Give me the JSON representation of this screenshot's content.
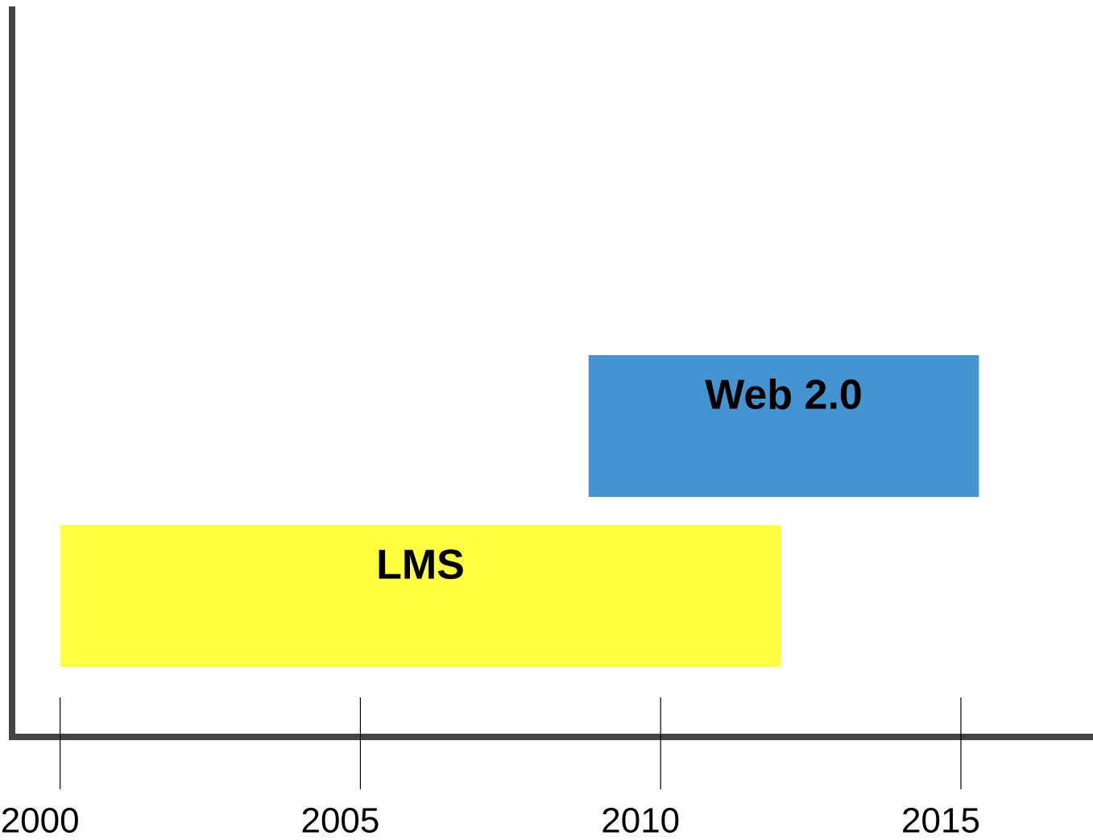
{
  "chart_data": {
    "type": "timeline",
    "bars": [
      {
        "name": "LMS",
        "color": "#ffff40",
        "start": 2000,
        "end": 2012
      },
      {
        "name": "Web 2.0",
        "color": "#4394d0",
        "start": 2008.8,
        "end": 2015.3
      }
    ],
    "xlim": [
      1999.2,
      2017.2
    ],
    "xticks": [
      2000,
      2005,
      2010,
      2015
    ]
  }
}
